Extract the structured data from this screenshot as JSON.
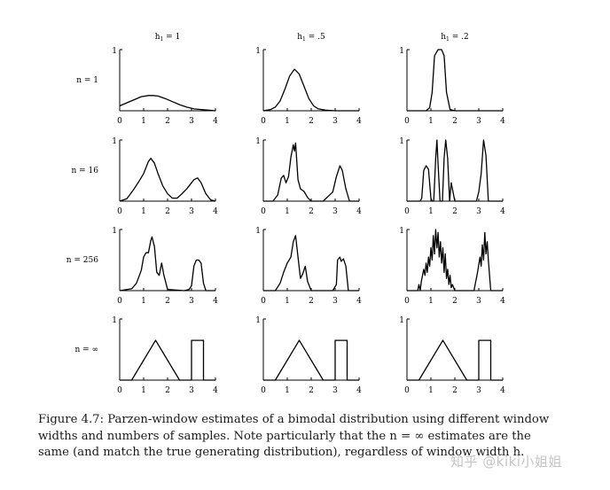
{
  "chart_data": {
    "type": "line",
    "columns": [
      {
        "h_label": "h",
        "h_sub": "1",
        "value": "= 1"
      },
      {
        "h_label": "h",
        "h_sub": "1",
        "value": "= .5"
      },
      {
        "h_label": "h",
        "h_sub": "1",
        "value": "= .2"
      }
    ],
    "rows": [
      "n = 1",
      "n = 16",
      "n = 256",
      "n = ∞"
    ],
    "xlim": [
      0,
      4
    ],
    "ylim": [
      0,
      1
    ],
    "x_ticks": [
      "0",
      "1",
      "2",
      "3",
      "4"
    ],
    "y_tick": "1",
    "panels": [
      [
        {
          "x": [
            0,
            0.3,
            0.6,
            0.9,
            1.2,
            1.4,
            1.6,
            1.9,
            2.2,
            2.5,
            2.8,
            3.1,
            3.4,
            3.7,
            4.0
          ],
          "y": [
            0.08,
            0.13,
            0.18,
            0.23,
            0.25,
            0.25,
            0.24,
            0.2,
            0.15,
            0.1,
            0.06,
            0.03,
            0.02,
            0.01,
            0
          ]
        },
        {
          "x": [
            0,
            0.3,
            0.5,
            0.7,
            0.9,
            1.1,
            1.3,
            1.5,
            1.7,
            1.9,
            2.1,
            2.3,
            2.6,
            3.0,
            4.0
          ],
          "y": [
            0,
            0.02,
            0.06,
            0.16,
            0.35,
            0.57,
            0.68,
            0.6,
            0.4,
            0.2,
            0.08,
            0.03,
            0.01,
            0,
            0
          ]
        },
        {
          "x": [
            0,
            0.8,
            0.95,
            1.05,
            1.15,
            1.3,
            1.45,
            1.55,
            1.65,
            1.8,
            2.0,
            4.0
          ],
          "y": [
            0,
            0,
            0.05,
            0.3,
            0.9,
            1.0,
            1.0,
            0.9,
            0.3,
            0.02,
            0,
            0
          ]
        }
      ],
      [
        {
          "x": [
            0,
            0.3,
            0.6,
            0.8,
            1.0,
            1.2,
            1.3,
            1.45,
            1.6,
            1.8,
            2.0,
            2.2,
            2.4,
            2.6,
            2.8,
            3.0,
            3.1,
            3.25,
            3.4,
            3.6,
            3.8,
            4.0
          ],
          "y": [
            0,
            0.04,
            0.2,
            0.32,
            0.45,
            0.65,
            0.7,
            0.62,
            0.45,
            0.25,
            0.12,
            0.05,
            0.05,
            0.12,
            0.2,
            0.3,
            0.35,
            0.38,
            0.3,
            0.12,
            0.02,
            0
          ]
        },
        {
          "x": [
            0,
            0.4,
            0.6,
            0.75,
            0.85,
            0.95,
            1.05,
            1.15,
            1.25,
            1.3,
            1.35,
            1.45,
            1.55,
            1.7,
            1.85,
            2.0,
            2.5,
            2.9,
            3.05,
            3.2,
            3.3,
            3.45,
            3.6,
            4.0
          ],
          "y": [
            0,
            0,
            0.1,
            0.38,
            0.42,
            0.3,
            0.4,
            0.72,
            0.92,
            0.82,
            0.95,
            0.35,
            0.2,
            0.16,
            0.06,
            0,
            0,
            0.15,
            0.4,
            0.58,
            0.5,
            0.2,
            0,
            0
          ]
        },
        {
          "x": [
            0,
            0.55,
            0.62,
            0.7,
            0.8,
            0.9,
            1.0,
            1.05,
            1.12,
            1.2,
            1.25,
            1.3,
            1.38,
            1.48,
            1.55,
            1.62,
            1.7,
            1.78,
            1.85,
            2.0,
            2.9,
            3.0,
            3.1,
            3.2,
            3.3,
            3.4,
            4.0
          ],
          "y": [
            0,
            0,
            0.05,
            0.5,
            0.58,
            0.52,
            0.05,
            0,
            0,
            0.7,
            1.0,
            0.6,
            0.0,
            0,
            0.7,
            1.0,
            0.7,
            0,
            0.3,
            0,
            0,
            0.15,
            0.45,
            1.0,
            0.75,
            0,
            0
          ]
        }
      ],
      [
        {
          "x": [
            0,
            0.5,
            0.7,
            0.9,
            1.0,
            1.1,
            1.2,
            1.3,
            1.35,
            1.45,
            1.55,
            1.65,
            1.75,
            1.85,
            2.0,
            2.7,
            2.9,
            3.0,
            3.1,
            3.2,
            3.3,
            3.4,
            3.5,
            3.6,
            4.0
          ],
          "y": [
            0,
            0.03,
            0.12,
            0.33,
            0.55,
            0.62,
            0.62,
            0.82,
            0.88,
            0.72,
            0.3,
            0.25,
            0.45,
            0.25,
            0.02,
            0,
            0.02,
            0.08,
            0.4,
            0.5,
            0.5,
            0.45,
            0.12,
            0,
            0
          ]
        },
        {
          "x": [
            0,
            0.5,
            0.7,
            0.85,
            1.0,
            1.15,
            1.25,
            1.35,
            1.45,
            1.55,
            1.65,
            1.75,
            1.85,
            2.0,
            2.9,
            3.05,
            3.1,
            3.2,
            3.25,
            3.35,
            3.45,
            3.55,
            4.0
          ],
          "y": [
            0,
            0,
            0.12,
            0.3,
            0.45,
            0.55,
            0.8,
            0.9,
            0.55,
            0.2,
            0.28,
            0.4,
            0.15,
            0,
            0,
            0.1,
            0.5,
            0.55,
            0.48,
            0.52,
            0.4,
            0,
            0
          ]
        },
        {
          "x": [
            0,
            0.45,
            0.5,
            0.55,
            0.6,
            0.7,
            0.75,
            0.8,
            0.85,
            0.9,
            0.95,
            1.0,
            1.05,
            1.1,
            1.15,
            1.2,
            1.25,
            1.3,
            1.35,
            1.4,
            1.45,
            1.5,
            1.55,
            1.6,
            1.65,
            1.7,
            1.75,
            1.8,
            1.85,
            1.9,
            2.0,
            2.8,
            2.95,
            3.05,
            3.1,
            3.15,
            3.2,
            3.25,
            3.3,
            3.35,
            3.4,
            3.5,
            4.0
          ],
          "y": [
            0,
            0,
            0.1,
            0.0,
            0.15,
            0.35,
            0.25,
            0.45,
            0.3,
            0.55,
            0.4,
            0.7,
            0.5,
            0.9,
            0.6,
            1.0,
            0.7,
            0.95,
            0.55,
            0.8,
            0.45,
            0.7,
            0.3,
            0.6,
            0.2,
            0.35,
            0.1,
            0.25,
            0.05,
            0.1,
            0,
            0,
            0.3,
            0.55,
            0.4,
            0.75,
            0.5,
            0.95,
            0.6,
            0.8,
            0.5,
            0,
            0
          ]
        }
      ],
      [
        {
          "x": [
            0,
            0.5,
            1.5,
            2.5,
            2.5,
            3,
            3,
            3.5,
            3.5,
            4.0
          ],
          "y": [
            0,
            0,
            0.65,
            0,
            0,
            0,
            0.65,
            0.65,
            0,
            0
          ]
        },
        {
          "x": [
            0,
            0.5,
            1.5,
            2.5,
            2.5,
            3,
            3,
            3.5,
            3.5,
            4.0
          ],
          "y": [
            0,
            0,
            0.65,
            0,
            0,
            0,
            0.65,
            0.65,
            0,
            0
          ]
        },
        {
          "x": [
            0,
            0.5,
            1.5,
            2.5,
            2.5,
            3,
            3,
            3.5,
            3.5,
            4.0
          ],
          "y": [
            0,
            0,
            0.65,
            0,
            0,
            0,
            0.65,
            0.65,
            0,
            0
          ]
        }
      ]
    ]
  },
  "caption": {
    "line1": "Figure 4.7: Parzen-window estimates of a bimodal distribution using different window",
    "line2": "widths and numbers of samples. Note particularly that the n = ∞ estimates are the",
    "line3": "same (and match the true generating distribution), regardless of window width h."
  },
  "watermark": "知乎 @kiki小姐姐"
}
